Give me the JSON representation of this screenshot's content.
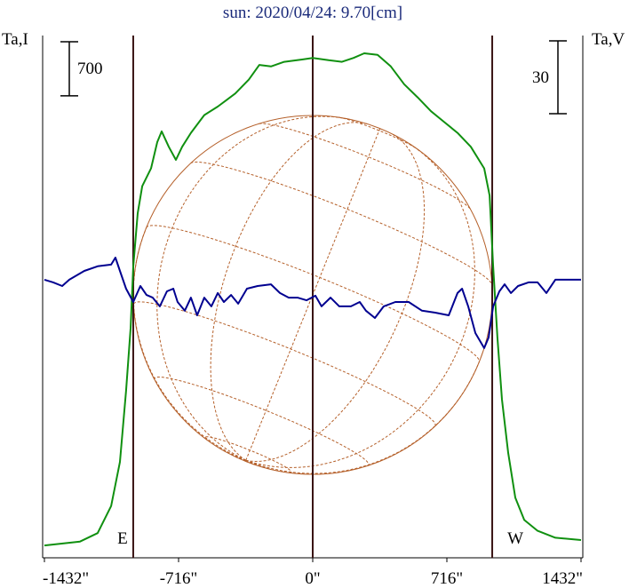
{
  "chart_data": {
    "type": "line",
    "title": "sun: 2020/04/24: 9.70[cm]",
    "y_label": "Ta,I",
    "y2_label": "Ta,V",
    "xlim": [
      -1432,
      1432
    ],
    "xticks": [
      {
        "value": -1432,
        "label": "-1432\""
      },
      {
        "value": -716,
        "label": "-716\""
      },
      {
        "value": 0,
        "label": "0\""
      },
      {
        "value": 716,
        "label": "716\""
      },
      {
        "value": 1432,
        "label": "1432\""
      }
    ],
    "ylim": [
      0,
      6760
    ],
    "y2lim": [
      -115.3,
      99.9
    ],
    "limb": [
      -958,
      958
    ],
    "limb_labels": [
      "E",
      "W"
    ],
    "scale_bars": [
      {
        "value": 700,
        "axis": "y"
      },
      {
        "value": 30,
        "axis": "y2"
      }
    ],
    "series": [
      {
        "name": "I",
        "color": "#109010",
        "x": [
          -1432,
          -1242,
          -1148,
          -1076,
          -1029,
          -996,
          -972,
          -958,
          -934,
          -910,
          -863,
          -830,
          -806,
          -768,
          -730,
          -697,
          -650,
          -579,
          -507,
          -413,
          -341,
          -285,
          -223,
          -152,
          -57,
          0,
          85,
          156,
          218,
          275,
          346,
          417,
          488,
          560,
          631,
          702,
          773,
          844,
          915,
          944,
          963,
          986,
          1010,
          1043,
          1081,
          1129,
          1200,
          1295,
          1432
        ],
        "values": [
          160,
          210,
          320,
          670,
          1240,
          2160,
          2970,
          3770,
          4460,
          4810,
          5040,
          5380,
          5520,
          5320,
          5150,
          5320,
          5500,
          5730,
          5840,
          6010,
          6190,
          6380,
          6360,
          6420,
          6450,
          6470,
          6440,
          6420,
          6470,
          6530,
          6510,
          6360,
          6130,
          5960,
          5780,
          5640,
          5500,
          5320,
          5040,
          4690,
          3770,
          2850,
          2050,
          1360,
          780,
          490,
          350,
          260,
          230
        ]
      },
      {
        "name": "V",
        "color": "#000090",
        "axis": "y2",
        "x": [
          -1432,
          -1385,
          -1337,
          -1299,
          -1219,
          -1148,
          -1076,
          -1053,
          -1029,
          -996,
          -958,
          -920,
          -887,
          -854,
          -816,
          -778,
          -744,
          -721,
          -683,
          -650,
          -617,
          -579,
          -541,
          -507,
          -474,
          -436,
          -398,
          -351,
          -294,
          -223,
          -175,
          -128,
          -81,
          -33,
          14,
          47,
          95,
          142,
          204,
          251,
          284,
          332,
          379,
          441,
          512,
          583,
          654,
          726,
          773,
          797,
          830,
          868,
          915,
          939,
          963,
          996,
          1024,
          1058,
          1096,
          1152,
          1200,
          1247,
          1295,
          1366,
          1432
        ],
        "values": [
          -0.7,
          -1.8,
          -3.3,
          -0.7,
          2.9,
          4.8,
          5.5,
          8.4,
          2.9,
          -4.4,
          -9.9,
          -3.3,
          -7.0,
          -8.1,
          -11.7,
          -5.5,
          -4.4,
          -9.9,
          -13.5,
          -8.1,
          -15.4,
          -8.1,
          -11.7,
          -6.2,
          -9.9,
          -7.0,
          -10.6,
          -4.4,
          -3.3,
          -2.6,
          -6.2,
          -8.1,
          -8.1,
          -9.2,
          -7.3,
          -11.7,
          -8.1,
          -11.7,
          -11.7,
          -9.9,
          -13.5,
          -16.5,
          -11.7,
          -9.9,
          -9.9,
          -13.5,
          -14.3,
          -15.4,
          -6.2,
          -4.4,
          -11.7,
          -22.7,
          -28.9,
          -24.5,
          -11.7,
          -5.5,
          -2.6,
          -6.2,
          -3.3,
          -1.8,
          -1.8,
          -6.2,
          -0.7,
          -0.7,
          -0.7
        ]
      }
    ]
  }
}
